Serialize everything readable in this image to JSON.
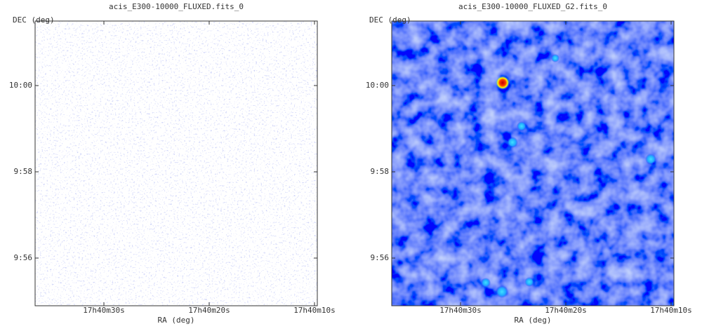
{
  "panels": [
    {
      "title": "acis_E300-10000_FLUXED.fits_0",
      "y_label": "DEC (deg)",
      "x_label": "RA (deg)",
      "y_tick_labels": [
        "10:00",
        "9:58",
        "9:56"
      ],
      "x_tick_labels": [
        "17h40m30s",
        "17h40m20s",
        "17h40m10s"
      ]
    },
    {
      "title": "acis_E300-10000_FLUXED_G2.fits_0",
      "y_label": "DEC (deg)",
      "x_label": "RA (deg)",
      "y_tick_labels": [
        "10:00",
        "9:58",
        "9:56"
      ],
      "x_tick_labels": [
        "17h40m30s",
        "17h40m20s",
        "17h40m10s"
      ]
    }
  ]
}
